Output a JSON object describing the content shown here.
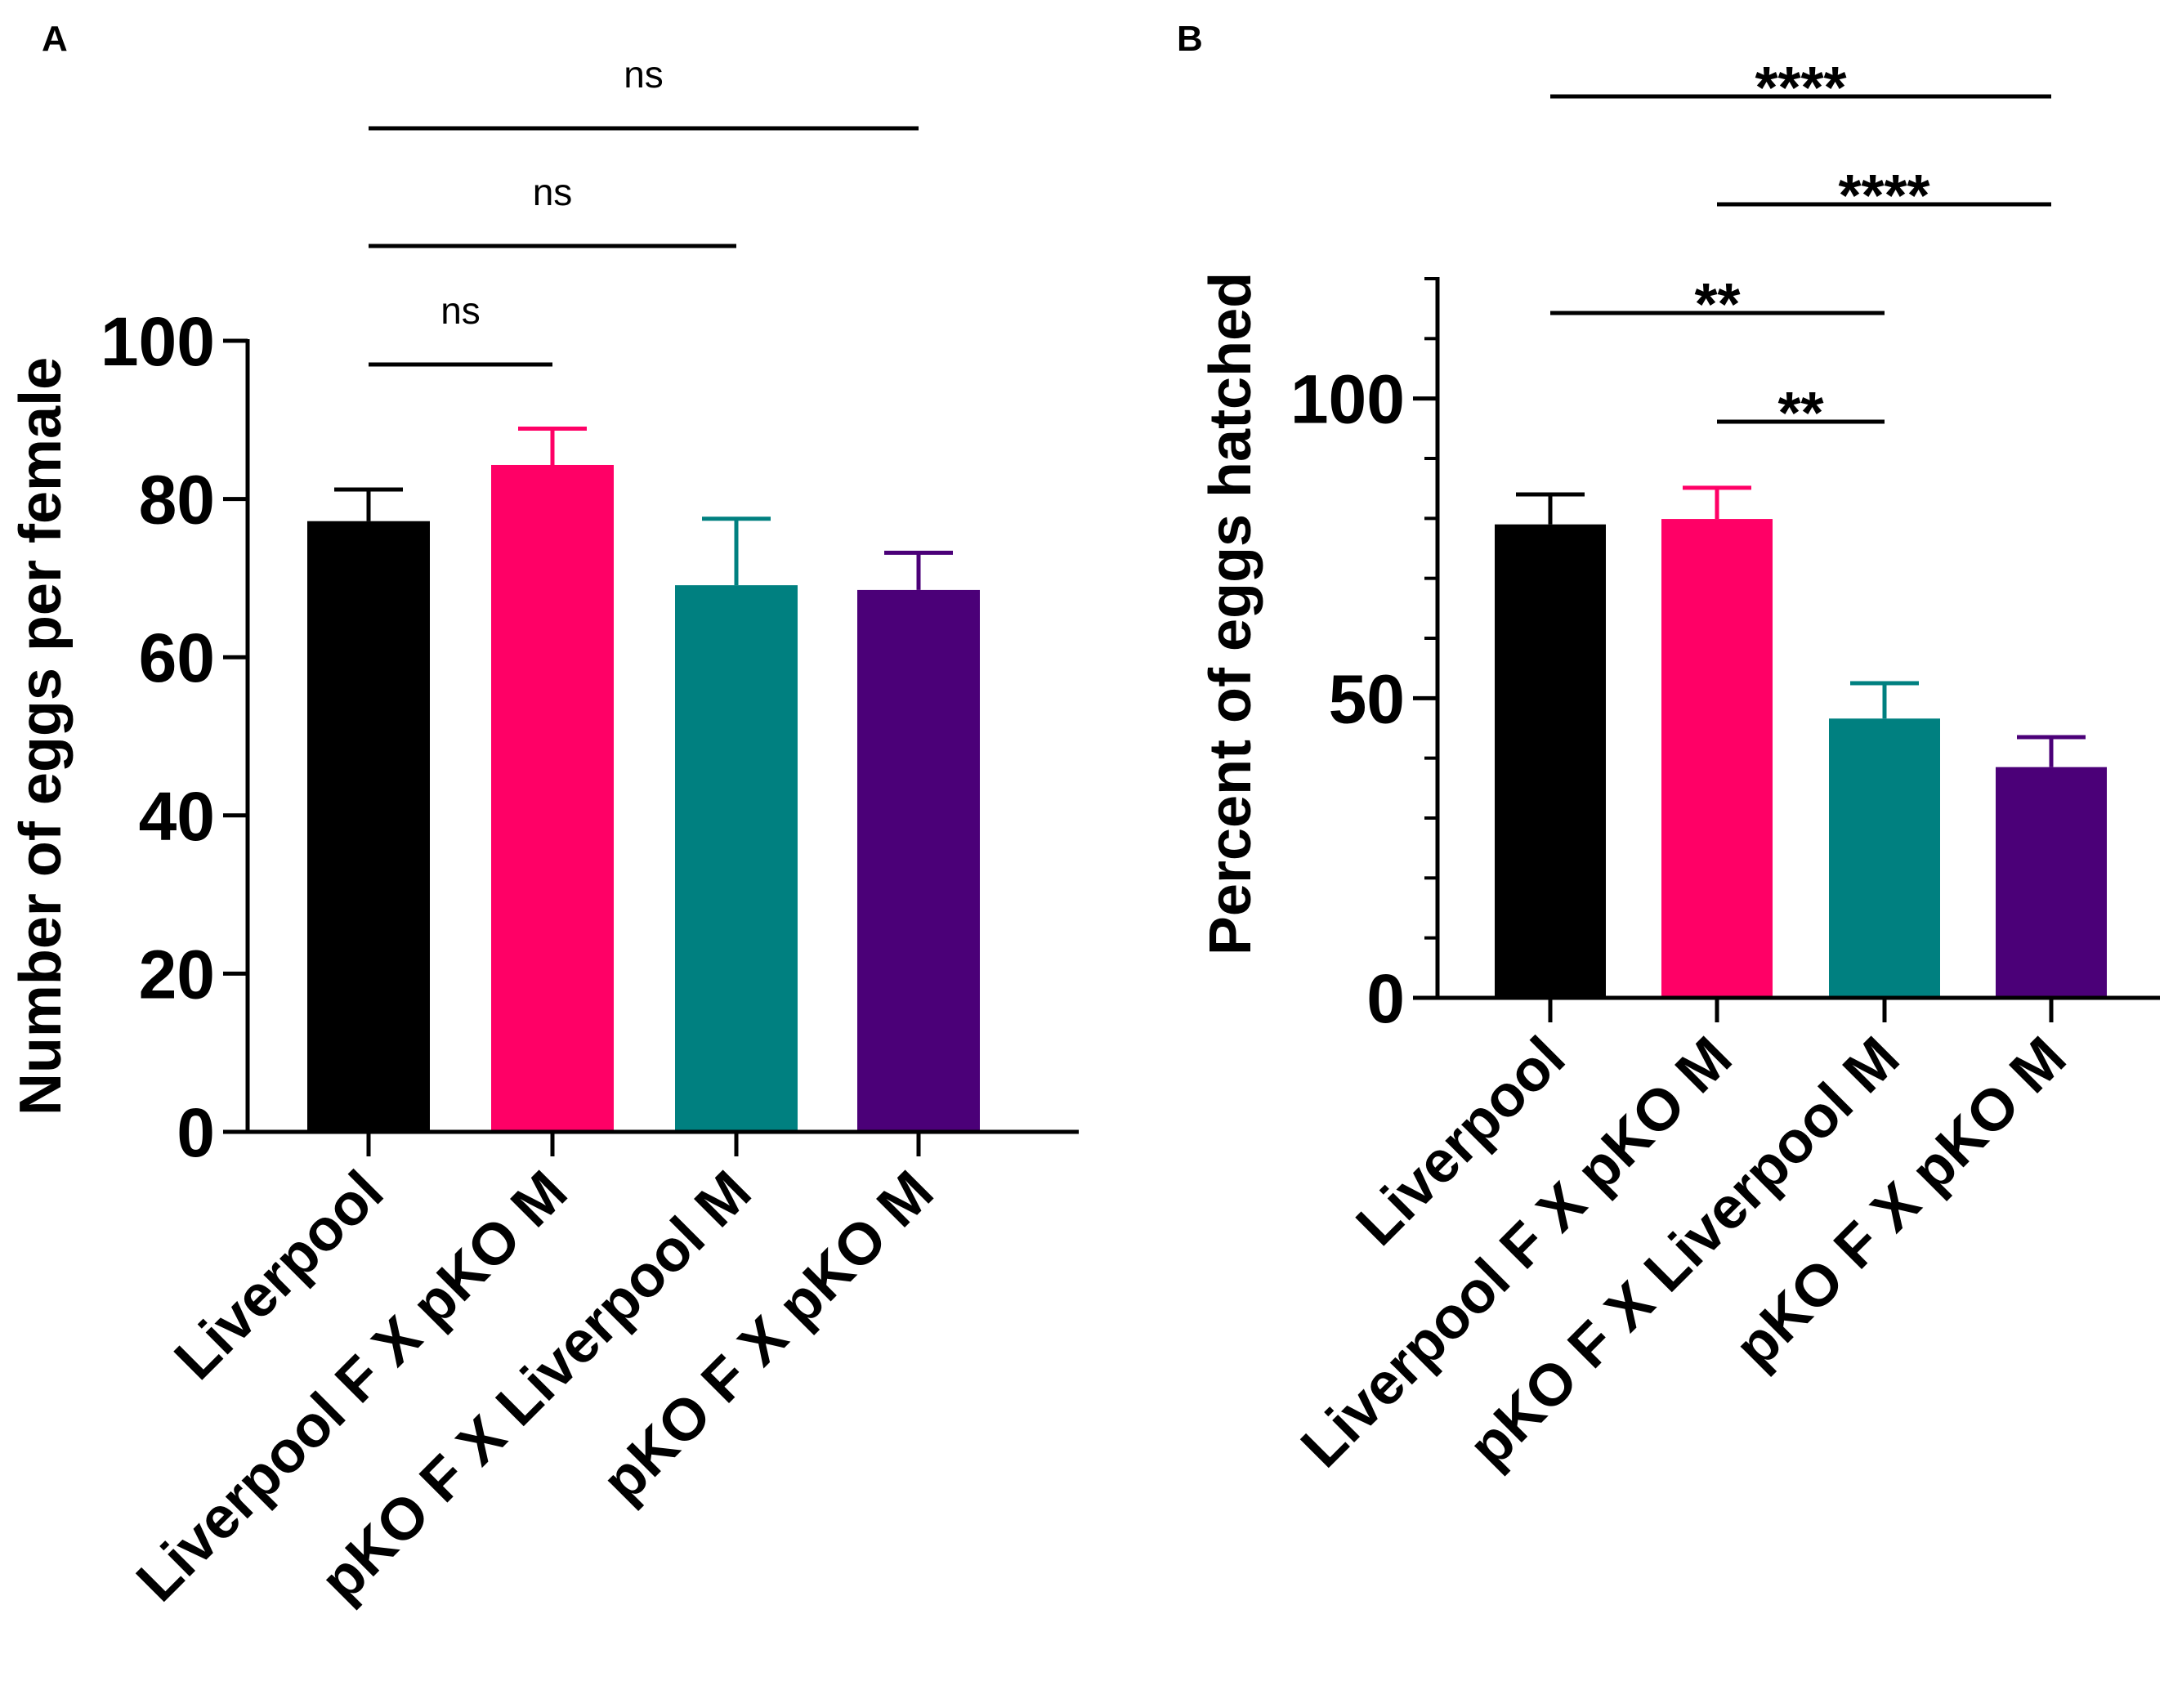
{
  "chart_data": [
    {
      "panel_label": "A",
      "type": "bar",
      "ylabel": "Number of eggs per female",
      "ylim": [
        0,
        100
      ],
      "yticks": [
        "0",
        "20",
        "40",
        "60",
        "80",
        "100"
      ],
      "categories": [
        "Liverpool",
        "Liverpool F X pKO M",
        "pKO F X Liverpool M",
        "pKO F X pKO M"
      ],
      "values": [
        77.2,
        84.3,
        69.1,
        68.5
      ],
      "error_upper": [
        81.2,
        88.9,
        77.5,
        73.2
      ],
      "colors": [
        "#000000",
        "#ff0066",
        "#008080",
        "#4b0078"
      ],
      "significance": [
        {
          "from": 0,
          "to": 3,
          "label": "ns"
        },
        {
          "from": 0,
          "to": 2,
          "label": "ns"
        },
        {
          "from": 0,
          "to": 1,
          "label": "ns"
        }
      ]
    },
    {
      "panel_label": "B",
      "type": "bar",
      "ylabel": "Percent of eggs hatched",
      "ylim": [
        0,
        120
      ],
      "yticks": [
        "0",
        "50",
        "100"
      ],
      "categories": [
        "Liverpool",
        "Liverpool F X pKO M",
        "pKO F X Liverpool M",
        "pKO F X pKO M"
      ],
      "values": [
        79.0,
        79.9,
        46.6,
        38.5
      ],
      "error_upper": [
        84.0,
        85.1,
        52.5,
        43.5
      ],
      "colors": [
        "#000000",
        "#ff0066",
        "#008080",
        "#4b0078"
      ],
      "significance": [
        {
          "from": 0,
          "to": 3,
          "label": "****"
        },
        {
          "from": 1,
          "to": 3,
          "label": "****"
        },
        {
          "from": 0,
          "to": 2,
          "label": "**"
        },
        {
          "from": 1,
          "to": 2,
          "label": "**"
        }
      ]
    }
  ]
}
